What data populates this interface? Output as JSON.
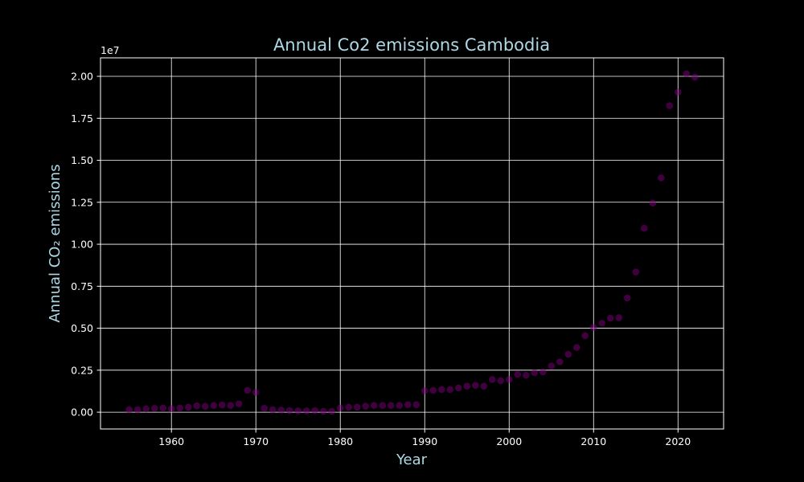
{
  "colors": {
    "background": "#000000",
    "text_accent": "#add8e6",
    "tick_text": "#ffffff",
    "grid": "#ffffff",
    "spine": "#ffffff",
    "point": "#800080"
  },
  "chart_data": {
    "type": "scatter",
    "title": "Annual Co2 emissions Cambodia",
    "xlabel": "Year",
    "ylabel": "Annual CO₂ emissions",
    "y_offset_label": "1e7",
    "xlim": [
      1951.6,
      2025.4
    ],
    "ylim": [
      -1000000,
      21100000
    ],
    "x_ticks": [
      1960,
      1970,
      1980,
      1990,
      2000,
      2010,
      2020
    ],
    "x_tick_labels": [
      "1960",
      "1970",
      "1980",
      "1990",
      "2000",
      "2010",
      "2020"
    ],
    "y_ticks": [
      0,
      2500000,
      5000000,
      7500000,
      10000000,
      12500000,
      15000000,
      17500000,
      20000000
    ],
    "y_tick_labels": [
      "0.00",
      "0.25",
      "0.50",
      "0.75",
      "1.00",
      "1.25",
      "1.50",
      "1.75",
      "2.00"
    ],
    "grid": true,
    "series": [
      {
        "x": [
          1955,
          1956,
          1957,
          1958,
          1959,
          1960,
          1961,
          1962,
          1963,
          1964,
          1965,
          1966,
          1967,
          1968,
          1969,
          1970,
          1971,
          1972,
          1973,
          1974,
          1975,
          1976,
          1977,
          1978,
          1979,
          1980,
          1981,
          1982,
          1983,
          1984,
          1985,
          1986,
          1987,
          1988,
          1989,
          1990,
          1991,
          1992,
          1993,
          1994,
          1995,
          1996,
          1997,
          1998,
          1999,
          2000,
          2001,
          2002,
          2003,
          2004,
          2005,
          2006,
          2007,
          2008,
          2009,
          2010,
          2011,
          2012,
          2013,
          2014,
          2015,
          2016,
          2017,
          2018,
          2019,
          2020,
          2021,
          2022
        ],
        "y": [
          150000,
          150000,
          200000,
          230000,
          250000,
          200000,
          250000,
          300000,
          380000,
          350000,
          400000,
          430000,
          400000,
          500000,
          1300000,
          1180000,
          230000,
          150000,
          130000,
          100000,
          80000,
          80000,
          100000,
          50000,
          50000,
          250000,
          300000,
          300000,
          360000,
          400000,
          400000,
          400000,
          400000,
          450000,
          450000,
          1280000,
          1300000,
          1350000,
          1350000,
          1450000,
          1550000,
          1600000,
          1550000,
          1950000,
          1880000,
          1950000,
          2250000,
          2200000,
          2350000,
          2400000,
          2750000,
          3000000,
          3450000,
          3850000,
          4550000,
          5050000,
          5300000,
          5600000,
          5630000,
          6800000,
          8350000,
          10950000,
          12450000,
          13950000,
          18250000,
          19050000,
          20150000,
          19950000
        ]
      }
    ]
  }
}
